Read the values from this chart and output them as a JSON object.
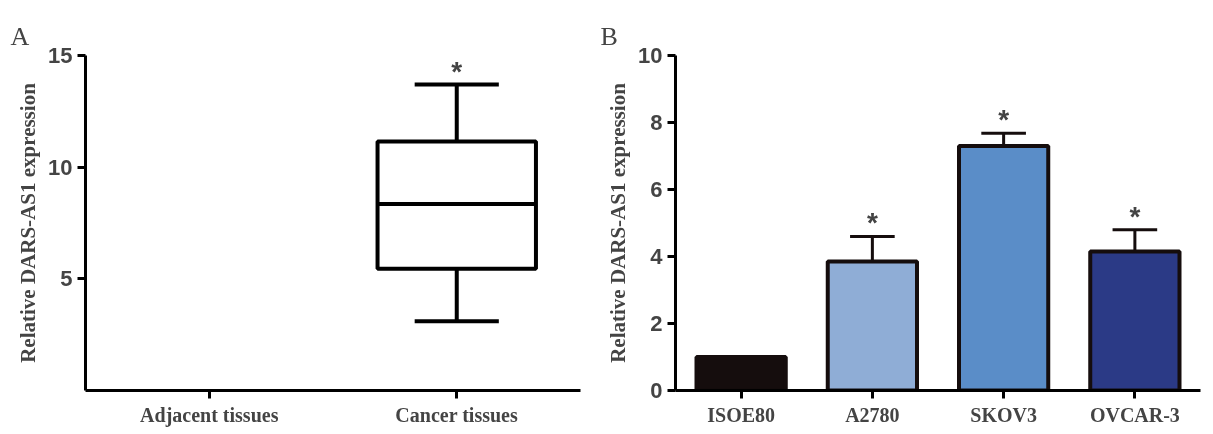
{
  "chart_data": [
    {
      "type": "box",
      "ylabel": "Relative DARS-AS1 expression",
      "categories": [
        "Adjacent tissues",
        "Cancer tissues"
      ],
      "boxes": [
        null,
        {
          "low": 3.1,
          "q1": 5.45,
          "median": 8.35,
          "q3": 11.15,
          "high": 13.7
        }
      ],
      "color": "#000000",
      "ylim": [
        0,
        15
      ],
      "yticks": [
        5,
        10,
        15
      ],
      "grid": false,
      "annotations": [
        "A",
        "*"
      ]
    },
    {
      "type": "bar",
      "ylabel": "Relative DARS-AS1 expression",
      "categories": [
        "ISOE80",
        "A2780",
        "SKOV3",
        "OVCAR-3"
      ],
      "values": [
        1.0,
        3.85,
        7.3,
        4.15
      ],
      "colors": [
        "#150d0d",
        "#8fadd6",
        "#5a8dc8",
        "#2b3a86"
      ],
      "errors": [
        null,
        [
          3.85,
          4.6
        ],
        [
          7.3,
          7.68
        ],
        [
          4.15,
          4.8
        ]
      ],
      "ylim": [
        0,
        10
      ],
      "yticks": [
        0,
        2,
        4,
        6,
        8,
        10
      ],
      "grid": false,
      "annotations": [
        "B",
        "*",
        "*",
        "*"
      ]
    }
  ]
}
